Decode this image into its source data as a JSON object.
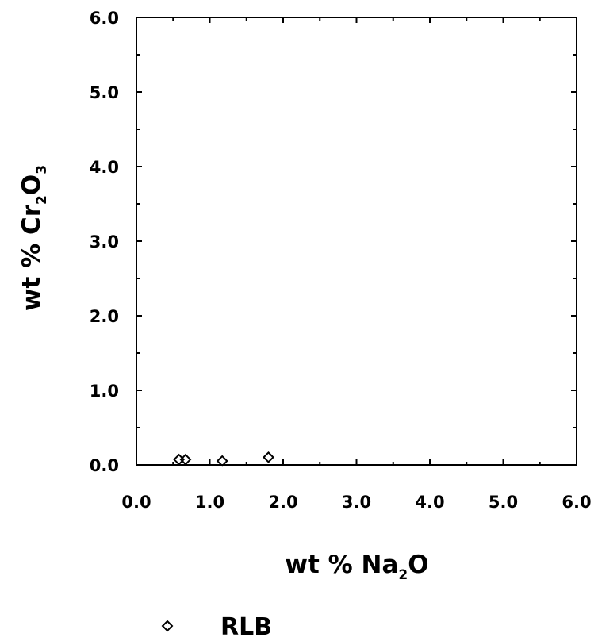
{
  "chart_data": {
    "type": "scatter",
    "title": "",
    "xlabel": {
      "prefix": "wt % Na",
      "sub": "2",
      "suffix": "O"
    },
    "ylabel": {
      "prefix": "wt % Cr",
      "sub": "2",
      "mid": "O",
      "sub2": "3"
    },
    "xlim": [
      0,
      6
    ],
    "ylim": [
      0,
      6
    ],
    "x_ticks": [
      "0.0",
      "1.0",
      "2.0",
      "3.0",
      "4.0",
      "5.0",
      "6.0"
    ],
    "y_ticks": [
      "0.0",
      "1.0",
      "2.0",
      "3.0",
      "4.0",
      "5.0",
      "6.0"
    ],
    "grid": false,
    "legend_position": "bottom-center",
    "series": [
      {
        "name": "RLB",
        "marker": "diamond-open",
        "color": "#000000",
        "points": [
          {
            "x": 0.58,
            "y": 0.03
          },
          {
            "x": 0.67,
            "y": 0.03
          },
          {
            "x": 1.17,
            "y": 0.01
          },
          {
            "x": 1.8,
            "y": 0.06
          }
        ]
      }
    ]
  }
}
